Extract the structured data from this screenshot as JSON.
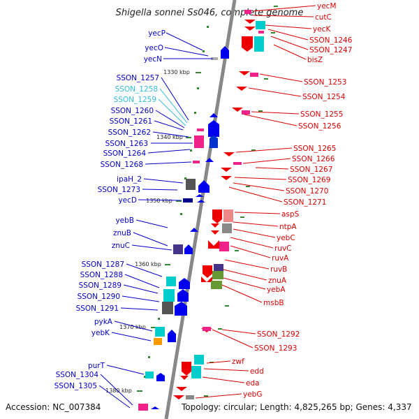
{
  "title": "Shigella sonnei Ss046, complete genome",
  "footer": {
    "accession": "Accession: NC_007384",
    "topology": "Topology: circular; Length: 4,825,265 bp; Genes: 4,337"
  },
  "colors": {
    "backbone": "#888888",
    "left_label": "#0000cc",
    "left_label_cyan": "#33bbdd",
    "right_label": "#dd0000",
    "tick": "#338833"
  },
  "ticks": [
    "1330 kbp",
    "1340 kbp",
    "1350 kbp",
    "1360 kbp",
    "1370 kbp",
    "1380 kbp"
  ],
  "left_labels": [
    {
      "text": "yecP",
      "color": "blue"
    },
    {
      "text": "yecO",
      "color": "blue"
    },
    {
      "text": "yecN",
      "color": "blue"
    },
    {
      "text": "SSON_1257",
      "color": "blue"
    },
    {
      "text": "SSON_1258",
      "color": "cyan"
    },
    {
      "text": "SSON_1259",
      "color": "cyan"
    },
    {
      "text": "SSON_1260",
      "color": "blue"
    },
    {
      "text": "SSON_1261",
      "color": "blue"
    },
    {
      "text": "SSON_1262",
      "color": "blue"
    },
    {
      "text": "SSON_1263",
      "color": "blue"
    },
    {
      "text": "SSON_1264",
      "color": "blue"
    },
    {
      "text": "SSON_1268",
      "color": "blue"
    },
    {
      "text": "ipaH_2",
      "color": "blue"
    },
    {
      "text": "SSON_1273",
      "color": "blue"
    },
    {
      "text": "yecD",
      "color": "blue"
    },
    {
      "text": "yebB",
      "color": "blue"
    },
    {
      "text": "znuB",
      "color": "blue"
    },
    {
      "text": "znuC",
      "color": "blue"
    },
    {
      "text": "SSON_1287",
      "color": "blue"
    },
    {
      "text": "SSON_1288",
      "color": "blue"
    },
    {
      "text": "SSON_1289",
      "color": "blue"
    },
    {
      "text": "SSON_1290",
      "color": "blue"
    },
    {
      "text": "SSON_1291",
      "color": "blue"
    },
    {
      "text": "pykA",
      "color": "blue"
    },
    {
      "text": "yebK",
      "color": "blue"
    },
    {
      "text": "purT",
      "color": "blue"
    },
    {
      "text": "SSON_1304",
      "color": "blue"
    },
    {
      "text": "SSON_1305",
      "color": "blue"
    }
  ],
  "right_labels": [
    {
      "text": "yecM"
    },
    {
      "text": "cutC"
    },
    {
      "text": "yecK"
    },
    {
      "text": "SSON_1246"
    },
    {
      "text": "SSON_1247"
    },
    {
      "text": "bisZ"
    },
    {
      "text": "SSON_1253"
    },
    {
      "text": "SSON_1254"
    },
    {
      "text": "SSON_1255"
    },
    {
      "text": "SSON_1256"
    },
    {
      "text": "SSON_1265"
    },
    {
      "text": "SSON_1266"
    },
    {
      "text": "SSON_1267"
    },
    {
      "text": "SSON_1269"
    },
    {
      "text": "SSON_1270"
    },
    {
      "text": "SSON_1271"
    },
    {
      "text": "aspS"
    },
    {
      "text": "ntpA"
    },
    {
      "text": "yebC"
    },
    {
      "text": "ruvC"
    },
    {
      "text": "ruvA"
    },
    {
      "text": "ruvB"
    },
    {
      "text": "znuA"
    },
    {
      "text": "yebA"
    },
    {
      "text": "msbB"
    },
    {
      "text": "SSON_1292"
    },
    {
      "text": "SSON_1293"
    },
    {
      "text": "zwf"
    },
    {
      "text": "edd"
    },
    {
      "text": "eda"
    },
    {
      "text": "yebG"
    }
  ]
}
